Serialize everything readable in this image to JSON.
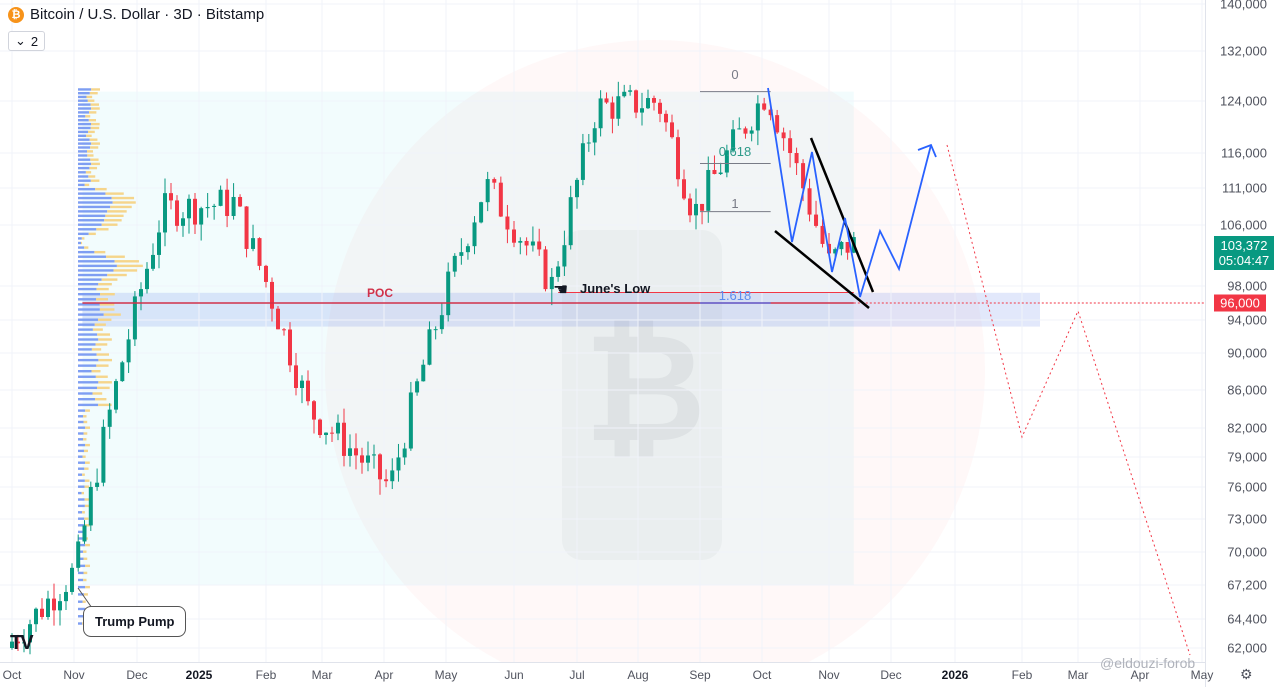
{
  "header": {
    "title": "Bitcoin / U.S. Dollar · 3D · Bitstamp",
    "badge_letter": "₿",
    "indicator_count": "2",
    "chevron": "⌄"
  },
  "price_axis": {
    "labels": [
      "140,000",
      "132,000",
      "124,000",
      "116,000",
      "111,000",
      "106,000",
      "98,000",
      "94,000",
      "90,000",
      "86,000",
      "82,000",
      "79,000",
      "76,000",
      "73,000",
      "70,000",
      "67,200",
      "64,400",
      "62,000"
    ],
    "values": [
      140000,
      132000,
      124000,
      116000,
      111000,
      106000,
      98000,
      94000,
      90000,
      86000,
      82000,
      79000,
      76000,
      73000,
      70000,
      67200,
      64400,
      62000
    ],
    "current_price": "103,372",
    "countdown": "05:04:47",
    "poc_label": "96,000"
  },
  "time_axis": {
    "labels": [
      "Oct",
      "Nov",
      "Dec",
      "2025",
      "Feb",
      "Mar",
      "Apr",
      "May",
      "Jun",
      "Jul",
      "Aug",
      "Sep",
      "Oct",
      "Nov",
      "Dec",
      "2026",
      "Feb",
      "Mar",
      "Apr",
      "May"
    ],
    "bold": [
      "2025",
      "2026"
    ]
  },
  "annotations": {
    "poc": "POC",
    "junes_low": "June's Low",
    "fib_0": "0",
    "fib_0618": "0.618",
    "fib_1": "1",
    "fib_1618": "1.618",
    "trump_pump": "Trump Pump"
  },
  "watermark": "@eldouzi-forob",
  "logo": "TV",
  "chart_data": {
    "type": "candlestick",
    "title": "Bitcoin / U.S. Dollar · 3D · Bitstamp",
    "x_range": [
      "Oct 2024",
      "May 2026"
    ],
    "ylim": [
      62000,
      140000
    ],
    "y_scale": "log",
    "colors": {
      "up": "#089981",
      "down": "#f23645",
      "poc": "#d0314a",
      "projection": "#2962ff",
      "volume_up": "#7e9ef2",
      "volume_down": "#f5d58b"
    },
    "poc_price": 96000,
    "junes_low_price": 98200,
    "fib_levels": [
      {
        "label": "0",
        "price": 125500
      },
      {
        "label": "0.618",
        "price": 114500
      },
      {
        "label": "1",
        "price": 107800
      },
      {
        "label": "1.618",
        "price": 96000
      }
    ],
    "current_price": 103372,
    "key_prices": [
      {
        "date": "2024-10-01",
        "price": 62000
      },
      {
        "date": "2024-11-05",
        "price": 68500
      },
      {
        "date": "2024-12-17",
        "price": 108000
      },
      {
        "date": "2025-01-20",
        "price": 109000
      },
      {
        "date": "2025-02-25",
        "price": 84000
      },
      {
        "date": "2025-04-07",
        "price": 76000
      },
      {
        "date": "2025-05-22",
        "price": 111500
      },
      {
        "date": "2025-06-22",
        "price": 98200
      },
      {
        "date": "2025-07-14",
        "price": 123000
      },
      {
        "date": "2025-08-14",
        "price": 124000
      },
      {
        "date": "2025-09-01",
        "price": 107500
      },
      {
        "date": "2025-10-06",
        "price": 125500
      },
      {
        "date": "2025-11-04",
        "price": 101000
      },
      {
        "date": "2025-11-13",
        "price": 103372
      }
    ]
  }
}
